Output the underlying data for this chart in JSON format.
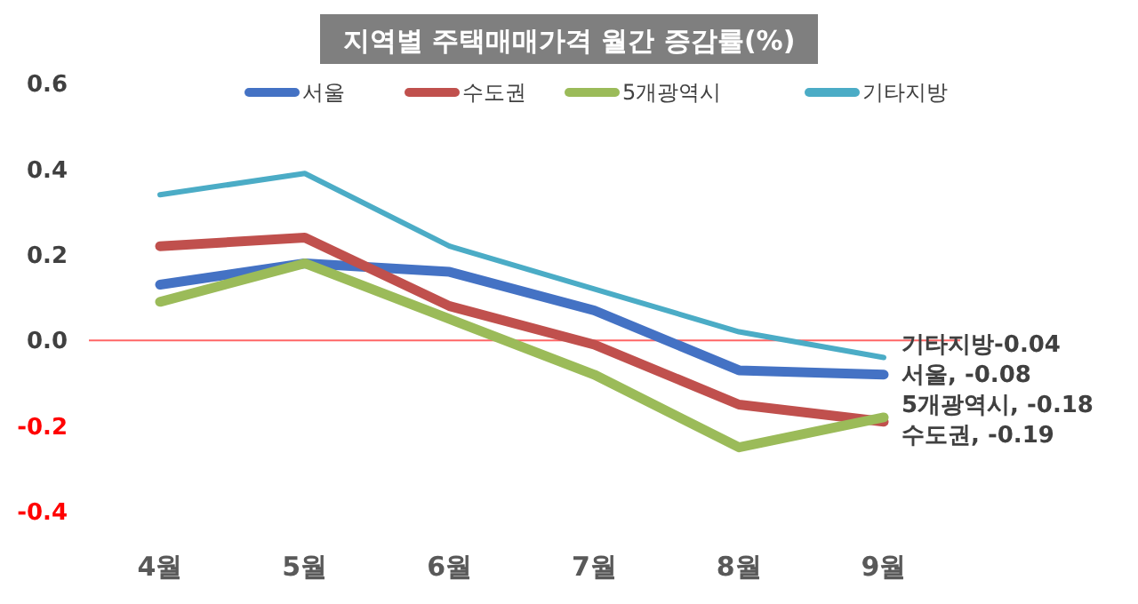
{
  "chart_data": {
    "type": "line",
    "title": "지역별 주택매매가격 월간 증감률(%)",
    "categories": [
      "4월",
      "5월",
      "6월",
      "7월",
      "8월",
      "9월"
    ],
    "series": [
      {
        "name": "서울",
        "color": "#4472c4",
        "values": [
          0.13,
          0.18,
          0.16,
          0.07,
          -0.07,
          -0.08
        ]
      },
      {
        "name": "수도권",
        "color": "#c0504d",
        "values": [
          0.22,
          0.24,
          0.08,
          -0.01,
          -0.15,
          -0.19
        ]
      },
      {
        "name": "5개광역시",
        "color": "#9bbb59",
        "values": [
          0.09,
          0.18,
          0.05,
          -0.08,
          -0.25,
          -0.18
        ]
      },
      {
        "name": "기타지방",
        "color": "#4bacc6",
        "values": [
          0.34,
          0.39,
          0.22,
          0.12,
          0.02,
          -0.04
        ]
      }
    ],
    "ylim": [
      -0.4,
      0.6
    ],
    "yticks": [
      {
        "value": -0.4,
        "label": "-0.4"
      },
      {
        "value": -0.2,
        "label": "-0.2"
      },
      {
        "value": 0,
        "label": "0.0"
      },
      {
        "value": 0.2,
        "label": "0.2"
      },
      {
        "value": 0.4,
        "label": "0.4"
      },
      {
        "value": 0.6,
        "label": "0.6"
      }
    ],
    "ref_lines": [
      {
        "axis": "y",
        "value": 0,
        "color": "#ff6666"
      }
    ],
    "annotations": [
      {
        "text": "기타지방-0.04",
        "x": "9월",
        "y": -0.04
      },
      {
        "text": "서울, -0.08",
        "x": "9월",
        "y": -0.08
      },
      {
        "text": "5개광역시, -0.18",
        "x": "9월",
        "y": -0.18
      },
      {
        "text": "수도권, -0.19",
        "x": "9월",
        "y": -0.19
      }
    ],
    "legend": "top",
    "grid": false,
    "line_style": "solid"
  }
}
